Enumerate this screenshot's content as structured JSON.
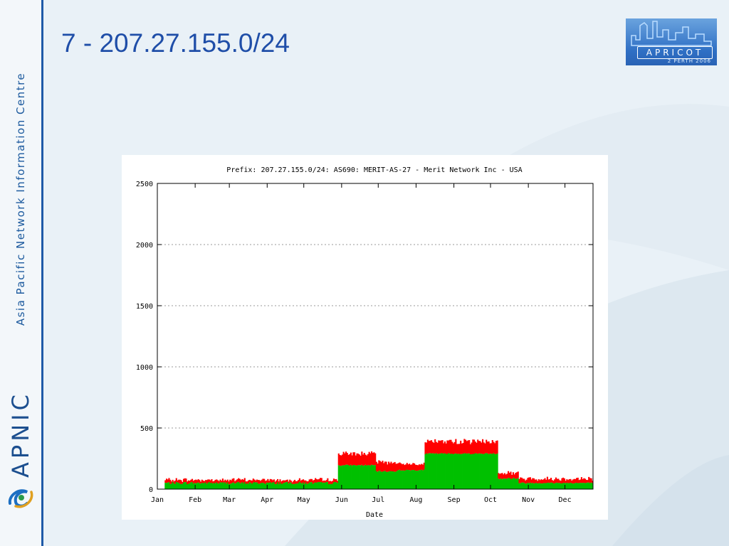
{
  "slide": {
    "title": "7 - 207.27.155.0/24",
    "sidebar_text": "Asia Pacific Network Information Centre",
    "brand_text": "APNIC",
    "event_logo_text": "APRICOT",
    "event_logo_subtext": "2 PERTH 2006"
  },
  "colors": {
    "accent": "#1f5aa8",
    "title": "#1f4ea8",
    "series_red": "#ff0000",
    "series_green": "#00c000"
  },
  "chart_data": {
    "type": "area",
    "title": "Prefix: 207.27.155.0/24: AS690: MERIT-AS-27 - Merit Network Inc - USA",
    "xlabel": "Date",
    "ylabel": "",
    "ylim": [
      0,
      2500
    ],
    "yticks": [
      0,
      500,
      1000,
      1500,
      2000,
      2500
    ],
    "xticks": [
      "Jan",
      "Feb",
      "Mar",
      "Apr",
      "May",
      "Jun",
      "Jul",
      "Aug",
      "Sep",
      "Oct",
      "Nov",
      "Dec"
    ],
    "x_range_days": [
      0,
      357
    ],
    "grid": true,
    "stacked": true,
    "series": [
      {
        "color": "#00c000",
        "segments": [
          {
            "from_day": 6,
            "to_day": 148,
            "base": [
              40,
              45,
              55,
              60
            ]
          },
          {
            "from_day": 148,
            "to_day": 179,
            "base": [
              190,
              200
            ]
          },
          {
            "from_day": 179,
            "to_day": 196,
            "base": [
              140,
              150
            ]
          },
          {
            "from_day": 196,
            "to_day": 219,
            "base": [
              150,
              160
            ]
          },
          {
            "from_day": 219,
            "to_day": 279,
            "base": [
              285,
              295
            ]
          },
          {
            "from_day": 279,
            "to_day": 296,
            "base": [
              80,
              95
            ]
          },
          {
            "from_day": 296,
            "to_day": 357,
            "base": [
              45,
              55
            ]
          }
        ]
      },
      {
        "color": "#ff0000",
        "segments": [
          {
            "from_day": 6,
            "to_day": 148,
            "extra": [
              15,
              35
            ]
          },
          {
            "from_day": 148,
            "to_day": 179,
            "extra": [
              80,
              110
            ]
          },
          {
            "from_day": 179,
            "to_day": 196,
            "extra": [
              60,
              90
            ]
          },
          {
            "from_day": 196,
            "to_day": 219,
            "extra": [
              45,
              60
            ]
          },
          {
            "from_day": 219,
            "to_day": 279,
            "extra": [
              80,
              120
            ]
          },
          {
            "from_day": 279,
            "to_day": 296,
            "extra": [
              30,
              60
            ]
          },
          {
            "from_day": 296,
            "to_day": 357,
            "extra": [
              20,
              50
            ]
          }
        ]
      }
    ]
  }
}
